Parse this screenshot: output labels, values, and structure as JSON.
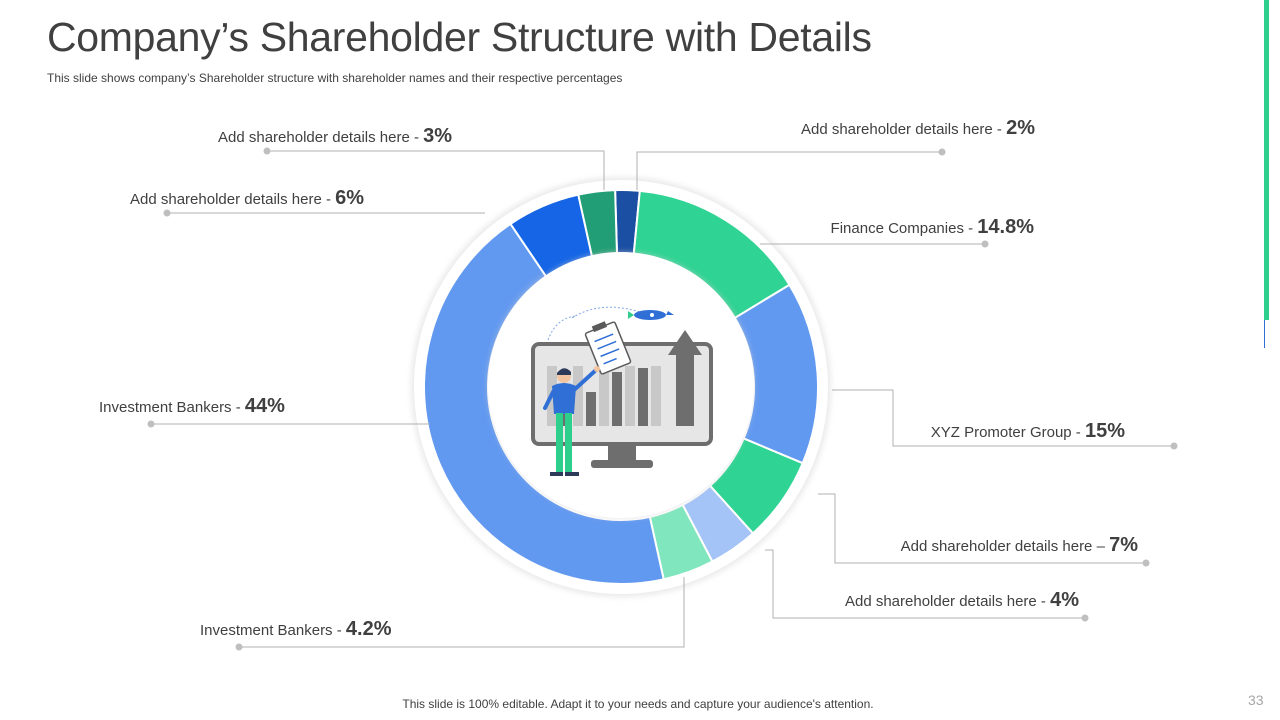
{
  "slide": {
    "title": "Company’s Shareholder Structure with Details",
    "subtitle": "This slide shows company’s Shareholder  structure with shareholder names and their respective percentages",
    "footer": "This slide is 100% editable. Adapt it to your needs and capture your audience's attention.",
    "page_number": "33"
  },
  "colors": {
    "accent_green": "#2ecf8c",
    "accent_blue": "#2f6fd6"
  },
  "chart_data": {
    "type": "pie",
    "variant": "donut",
    "title": "Company’s Shareholder Structure with Details",
    "unit": "%",
    "slices": [
      {
        "label": "Add shareholder details here - ",
        "value_text": "2%",
        "value": 2,
        "color": "#1a4fa3"
      },
      {
        "label": "Finance Companies - ",
        "value_text": "14.8%",
        "value": 14.8,
        "color": "#2fd393"
      },
      {
        "label": "XYZ  Promoter Group - ",
        "value_text": "15%",
        "value": 15,
        "color": "#6299f0"
      },
      {
        "label": "Add shareholder details here – ",
        "value_text": "7%",
        "value": 7,
        "color": "#2fd393"
      },
      {
        "label": "Add shareholder details here - ",
        "value_text": "4%",
        "value": 4,
        "color": "#a4c3f7"
      },
      {
        "label": "Investment  Bankers - ",
        "value_text": "4.2%",
        "value": 4.2,
        "color": "#80e6bd"
      },
      {
        "label": "Investment  Bankers - ",
        "value_text": "44%",
        "value": 44,
        "color": "#6299f0"
      },
      {
        "label": "Add shareholder details here - ",
        "value_text": "6%",
        "value": 6,
        "color": "#1565e6"
      },
      {
        "label": "Add shareholder details here - ",
        "value_text": "3%",
        "value": 3,
        "color": "#219e75"
      }
    ]
  }
}
